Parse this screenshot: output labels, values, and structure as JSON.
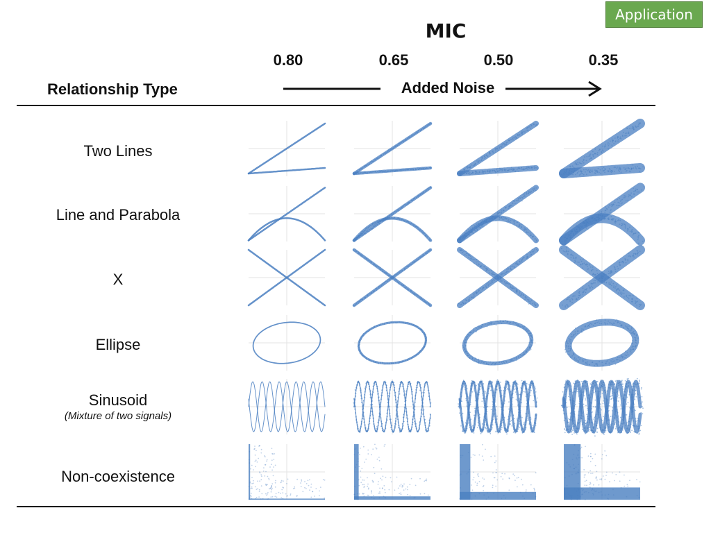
{
  "badge": "Application",
  "header": {
    "title": "MIC",
    "mic_values": [
      "0.80",
      "0.65",
      "0.50",
      "0.35"
    ],
    "relationship_heading": "Relationship Type",
    "noise_label": "Added Noise"
  },
  "rows": [
    {
      "label": "Two Lines",
      "sublabel": ""
    },
    {
      "label": "Line and Parabola",
      "sublabel": ""
    },
    {
      "label": "X",
      "sublabel": ""
    },
    {
      "label": "Ellipse",
      "sublabel": ""
    },
    {
      "label": "Sinusoid",
      "sublabel": "(Mixture of two signals)"
    },
    {
      "label": "Non-coexistence",
      "sublabel": ""
    }
  ],
  "colors": {
    "plot": "#4a7fc1",
    "grid": "#e3e3e3",
    "badge": "#6aa84f"
  }
}
